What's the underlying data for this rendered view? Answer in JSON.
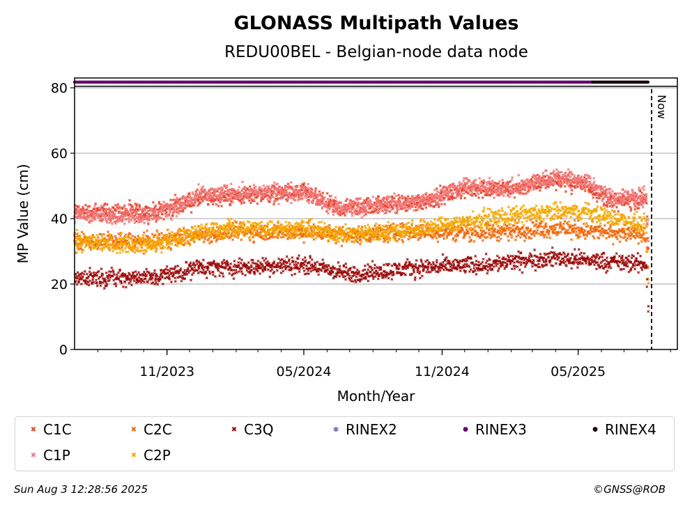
{
  "chart_data": {
    "type": "scatter",
    "title": "GLONASS Multipath Values",
    "subtitle": "REDU00BEL - Belgian-node data node",
    "xlabel": "Month/Year",
    "ylabel": "MP Value (cm)",
    "ylim": [
      0,
      80
    ],
    "xlim": [
      "2023-07-01",
      "2025-09-10"
    ],
    "yticks": [
      0,
      20,
      40,
      60,
      80
    ],
    "xticks": [
      {
        "date": "2023-11-01",
        "label": "11/2023"
      },
      {
        "date": "2024-05-01",
        "label": "05/2024"
      },
      {
        "date": "2024-11-01",
        "label": "11/2024"
      },
      {
        "date": "2025-05-01",
        "label": "05/2025"
      }
    ],
    "grid": "horizontal",
    "now_line": {
      "date": "2025-08-03",
      "label": "Now"
    },
    "series": [
      {
        "name": "C1C",
        "marker": "x",
        "color": "#e8402a",
        "trend": [
          {
            "date": "2023-07-01",
            "value": 42
          },
          {
            "date": "2023-10-15",
            "value": 42
          },
          {
            "date": "2023-12-15",
            "value": 46
          },
          {
            "date": "2024-02-01",
            "value": 47
          },
          {
            "date": "2024-05-01",
            "value": 48
          },
          {
            "date": "2024-06-15",
            "value": 43
          },
          {
            "date": "2024-08-01",
            "value": 44
          },
          {
            "date": "2024-10-01",
            "value": 45
          },
          {
            "date": "2024-12-01",
            "value": 49
          },
          {
            "date": "2025-02-01",
            "value": 49
          },
          {
            "date": "2025-04-01",
            "value": 52
          },
          {
            "date": "2025-05-15",
            "value": 50
          },
          {
            "date": "2025-06-15",
            "value": 45
          },
          {
            "date": "2025-07-31",
            "value": 46
          },
          {
            "date": "2025-08-02",
            "value": 32
          }
        ]
      },
      {
        "name": "C1P",
        "marker": "x",
        "color": "#f07a7a",
        "trend": [
          {
            "date": "2023-07-01",
            "value": 41
          },
          {
            "date": "2023-10-15",
            "value": 41
          },
          {
            "date": "2023-12-15",
            "value": 47
          },
          {
            "date": "2024-02-01",
            "value": 48
          },
          {
            "date": "2024-05-01",
            "value": 48
          },
          {
            "date": "2024-06-15",
            "value": 43
          },
          {
            "date": "2024-08-01",
            "value": 44
          },
          {
            "date": "2024-10-01",
            "value": 45
          },
          {
            "date": "2024-12-01",
            "value": 50
          },
          {
            "date": "2025-02-01",
            "value": 49
          },
          {
            "date": "2025-04-01",
            "value": 53
          },
          {
            "date": "2025-05-15",
            "value": 51
          },
          {
            "date": "2025-06-15",
            "value": 46
          },
          {
            "date": "2025-07-31",
            "value": 47
          },
          {
            "date": "2025-08-02",
            "value": 33
          }
        ]
      },
      {
        "name": "C2C",
        "marker": "x",
        "color": "#f0680a",
        "trend": [
          {
            "date": "2023-07-01",
            "value": 33
          },
          {
            "date": "2023-10-15",
            "value": 33
          },
          {
            "date": "2023-12-15",
            "value": 35
          },
          {
            "date": "2024-02-01",
            "value": 36
          },
          {
            "date": "2024-05-01",
            "value": 36
          },
          {
            "date": "2024-07-01",
            "value": 35
          },
          {
            "date": "2024-10-01",
            "value": 36
          },
          {
            "date": "2025-01-01",
            "value": 36
          },
          {
            "date": "2025-04-01",
            "value": 37
          },
          {
            "date": "2025-07-31",
            "value": 35
          },
          {
            "date": "2025-08-02",
            "value": 25
          }
        ]
      },
      {
        "name": "C2P",
        "marker": "x",
        "color": "#f5a800",
        "trend": [
          {
            "date": "2023-07-01",
            "value": 33
          },
          {
            "date": "2023-10-15",
            "value": 32
          },
          {
            "date": "2023-12-15",
            "value": 36
          },
          {
            "date": "2024-02-01",
            "value": 37
          },
          {
            "date": "2024-05-01",
            "value": 37
          },
          {
            "date": "2024-07-01",
            "value": 35
          },
          {
            "date": "2024-10-01",
            "value": 37
          },
          {
            "date": "2025-01-01",
            "value": 40
          },
          {
            "date": "2025-04-01",
            "value": 42
          },
          {
            "date": "2025-05-15",
            "value": 42
          },
          {
            "date": "2025-07-31",
            "value": 38
          },
          {
            "date": "2025-08-02",
            "value": 21
          }
        ]
      },
      {
        "name": "C3Q",
        "marker": "x",
        "color": "#9b0a0a",
        "trend": [
          {
            "date": "2023-07-01",
            "value": 22
          },
          {
            "date": "2023-10-15",
            "value": 22
          },
          {
            "date": "2023-12-15",
            "value": 25
          },
          {
            "date": "2024-02-01",
            "value": 25
          },
          {
            "date": "2024-05-01",
            "value": 26
          },
          {
            "date": "2024-07-01",
            "value": 23
          },
          {
            "date": "2024-10-01",
            "value": 25
          },
          {
            "date": "2025-01-01",
            "value": 26
          },
          {
            "date": "2025-04-01",
            "value": 28
          },
          {
            "date": "2025-07-31",
            "value": 26
          },
          {
            "date": "2025-08-02",
            "value": 13
          }
        ]
      },
      {
        "name": "RINEX2",
        "marker": "dot",
        "color": "#8a7fc0"
      },
      {
        "name": "RINEX3",
        "marker": "dot",
        "color": "#6a0a6a",
        "y": 81,
        "start": "2023-07-01",
        "end": "2025-05-20"
      },
      {
        "name": "RINEX4",
        "marker": "dot",
        "color": "#1a0010",
        "y": 81,
        "start": "2025-05-20",
        "end": "2025-08-02"
      }
    ],
    "legend_placement": "bottom"
  },
  "footer": {
    "timestamp": "Sun Aug  3 12:28:56 2025",
    "credit": "©GNSS@ROB"
  }
}
